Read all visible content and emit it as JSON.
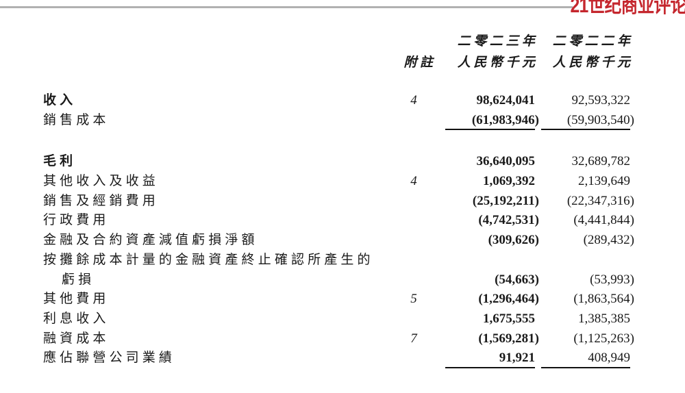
{
  "logo": {
    "text": "21世纪商业评论",
    "color": "#c5272e"
  },
  "decor": {
    "top_rule_color": "#b1b1b1",
    "underline_color": "#111111"
  },
  "table": {
    "header": {
      "note": "附註",
      "col2023": {
        "line1": "二零二三年",
        "line2": "人民幣千元"
      },
      "col2022": {
        "line1": "二零二二年",
        "line2": "人民幣千元"
      }
    },
    "rows": [
      {
        "label": "收入",
        "note": "4",
        "y2023": "98,624,041",
        "y2022": "92,593,322",
        "bold_label": true
      },
      {
        "label": "銷售成本",
        "note": "",
        "y2023": "(61,983,946)",
        "y2022": "(59,903,540)",
        "underline": true
      },
      {
        "spacer": true
      },
      {
        "label": "毛利",
        "note": "",
        "y2023": "36,640,095",
        "y2022": "32,689,782",
        "bold_label": true
      },
      {
        "label": "其他收入及收益",
        "note": "4",
        "y2023": "1,069,392",
        "y2022": "2,139,649"
      },
      {
        "label": "銷售及經銷費用",
        "note": "",
        "y2023": "(25,192,211)",
        "y2022": "(22,347,316)"
      },
      {
        "label": "行政費用",
        "note": "",
        "y2023": "(4,742,531)",
        "y2022": "(4,441,844)"
      },
      {
        "label": "金融及合約資產減值虧損淨額",
        "note": "",
        "y2023": "(309,626)",
        "y2022": "(289,432)"
      },
      {
        "label": "按攤餘成本計量的金融資產終止確認所產生的",
        "note": "",
        "y2023": "",
        "y2022": ""
      },
      {
        "label": "虧損",
        "note": "",
        "y2023": "(54,663)",
        "y2022": "(53,993)",
        "indent": true
      },
      {
        "label": "其他費用",
        "note": "5",
        "y2023": "(1,296,464)",
        "y2022": "(1,863,564)"
      },
      {
        "label": "利息收入",
        "note": "",
        "y2023": "1,675,555",
        "y2022": "1,385,385"
      },
      {
        "label": "融資成本",
        "note": "7",
        "y2023": "(1,569,281)",
        "y2022": "(1,125,263)"
      },
      {
        "label": "應佔聯營公司業績",
        "note": "",
        "y2023": "91,921",
        "y2022": "408,949",
        "underline": true
      }
    ]
  }
}
